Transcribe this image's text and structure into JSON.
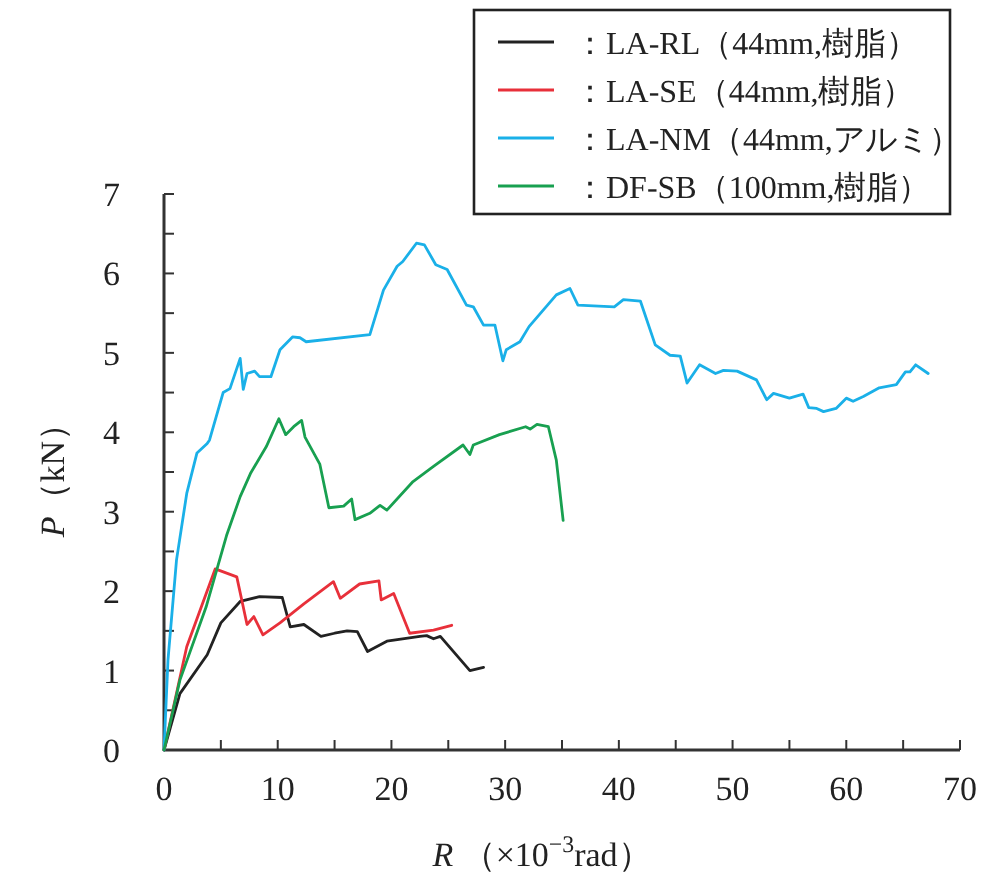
{
  "chart_data": {
    "type": "line",
    "xlabel": "R （×10$^{−3}$rad）",
    "ylabel": "P（kN）",
    "xlim": [
      0,
      70
    ],
    "xticks": [
      0,
      {
        "value": 5,
        "label": null
      },
      10,
      {
        "value": 15,
        "label": null
      },
      20,
      {
        "value": 25,
        "label": null
      },
      30,
      {
        "value": 35,
        "label": null
      },
      40,
      {
        "value": 45,
        "label": null
      },
      50,
      {
        "value": 55,
        "label": null
      },
      60,
      {
        "value": 65,
        "label": null
      },
      70
    ],
    "ylim": [
      0,
      7
    ],
    "yticks": [
      0,
      {
        "value": 0.5,
        "label": null
      },
      1,
      {
        "value": 1.5,
        "label": null
      },
      2,
      {
        "value": 2.5,
        "label": null
      },
      3,
      {
        "value": 3.5,
        "label": null
      },
      4,
      {
        "value": 4.5,
        "label": null
      },
      5,
      {
        "value": 5.5,
        "label": null
      },
      6,
      {
        "value": 6.5,
        "label": null
      },
      7
    ],
    "grid": false,
    "legend": "top right",
    "marker": "none",
    "line_style": "solid",
    "series": [
      {
        "name": "：LA-RL（44mm,樹脂）",
        "color": "#222222",
        "x": [
          0,
          1.4,
          3.8,
          5,
          6.7,
          8.4,
          10.4,
          11.1,
          12.3,
          13.8,
          15,
          16.1,
          17,
          17.9,
          19.6,
          22.5,
          23.1,
          23.7,
          24.3,
          26.9,
          28.1
        ],
        "values": [
          0,
          0.71,
          1.2,
          1.6,
          1.87,
          1.93,
          1.92,
          1.55,
          1.58,
          1.43,
          1.47,
          1.5,
          1.49,
          1.24,
          1.37,
          1.43,
          1.44,
          1.4,
          1.43,
          1.0,
          1.04
        ]
      },
      {
        "name": "：LA-SE（44mm,樹脂）",
        "color": "#e8303a",
        "x": [
          0,
          2,
          4.5,
          6.4,
          7.3,
          7.9,
          8.7,
          10.2,
          12.3,
          14.9,
          15.5,
          17.2,
          18.9,
          19.1,
          20.2,
          21.6,
          23.7,
          25.3
        ],
        "values": [
          0,
          1.3,
          2.28,
          2.18,
          1.58,
          1.68,
          1.45,
          1.6,
          1.84,
          2.12,
          1.91,
          2.09,
          2.13,
          1.89,
          1.97,
          1.47,
          1.51,
          1.57
        ]
      },
      {
        "name": "：LA-NM（44mm,アルミ）",
        "color": "#1ab0e8",
        "x": [
          0,
          0.35,
          1.1,
          2.0,
          2.9,
          3.8,
          4.0,
          5.2,
          5.8,
          6.7,
          6.97,
          7.3,
          7.97,
          8.4,
          9.4,
          10.2,
          11.3,
          11.96,
          12.5,
          18.1,
          19.3,
          20.5,
          21.0,
          22.2,
          22.9,
          23.9,
          24.9,
          26.6,
          27.2,
          28.1,
          29.1,
          29.8,
          30.1,
          31.3,
          32.1,
          34.5,
          35.7,
          36.4,
          39.6,
          40.4,
          41.9,
          43.2,
          44.5,
          45.4,
          46.0,
          47.1,
          48.5,
          49.2,
          50.4,
          52.1,
          53.0,
          53.6,
          55.0,
          56.2,
          56.7,
          57.4,
          58.0,
          59.1,
          60.0,
          60.6,
          61.5,
          62.9,
          64.4,
          65.2,
          65.6,
          66.1,
          67.2
        ],
        "values": [
          0,
          1.13,
          2.39,
          3.23,
          3.74,
          3.86,
          3.9,
          4.5,
          4.55,
          4.93,
          4.54,
          4.74,
          4.77,
          4.7,
          4.7,
          5.04,
          5.2,
          5.19,
          5.14,
          5.23,
          5.79,
          6.09,
          6.15,
          6.38,
          6.36,
          6.11,
          6.05,
          5.6,
          5.58,
          5.35,
          5.35,
          4.9,
          5.04,
          5.14,
          5.33,
          5.73,
          5.81,
          5.6,
          5.58,
          5.67,
          5.65,
          5.1,
          4.97,
          4.96,
          4.62,
          4.85,
          4.74,
          4.78,
          4.77,
          4.66,
          4.41,
          4.49,
          4.43,
          4.48,
          4.31,
          4.3,
          4.26,
          4.3,
          4.43,
          4.39,
          4.45,
          4.56,
          4.6,
          4.76,
          4.76,
          4.85,
          4.74
        ]
      },
      {
        "name": "：DF-SB（100mm,樹脂）",
        "color": "#18a050",
        "x": [
          0,
          1.4,
          3.7,
          5.5,
          6.7,
          7.6,
          9.0,
          10.1,
          10.7,
          11.4,
          12.1,
          12.4,
          13.7,
          14.5,
          15.8,
          16.5,
          16.8,
          18.1,
          19.0,
          19.6,
          21.9,
          23.7,
          26.3,
          26.9,
          27.2,
          29.5,
          31.8,
          32.2,
          32.8,
          33.8,
          34.5,
          35.1
        ],
        "values": [
          0,
          0.88,
          1.8,
          2.7,
          3.19,
          3.48,
          3.82,
          4.17,
          3.97,
          4.07,
          4.15,
          3.94,
          3.6,
          3.05,
          3.07,
          3.16,
          2.9,
          2.98,
          3.08,
          3.02,
          3.38,
          3.57,
          3.84,
          3.72,
          3.84,
          3.97,
          4.07,
          4.04,
          4.1,
          4.07,
          3.65,
          2.89
        ]
      }
    ]
  }
}
